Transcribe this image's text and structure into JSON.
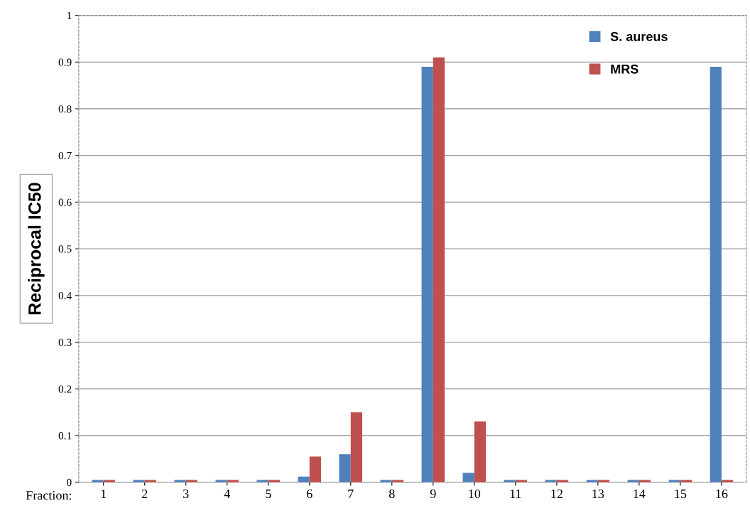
{
  "chart_data": {
    "type": "bar",
    "ylabel": "Reciprocal IC50",
    "xlabel": "Fraction:",
    "categories": [
      "1",
      "2",
      "3",
      "4",
      "5",
      "6",
      "7",
      "8",
      "9",
      "10",
      "11",
      "12",
      "13",
      "14",
      "15",
      "16"
    ],
    "series": [
      {
        "name": "S. aureus",
        "color": "#4f81bd",
        "values": [
          0.005,
          0.005,
          0.005,
          0.005,
          0.005,
          0.012,
          0.06,
          0.005,
          0.89,
          0.02,
          0.005,
          0.005,
          0.005,
          0.005,
          0.005,
          0.89
        ]
      },
      {
        "name": "MRS",
        "color": "#c0504d",
        "values": [
          0.005,
          0.005,
          0.005,
          0.005,
          0.005,
          0.055,
          0.15,
          0.005,
          0.91,
          0.13,
          0.005,
          0.005,
          0.005,
          0.005,
          0.005,
          0.005
        ]
      }
    ],
    "ylim": [
      0,
      1
    ],
    "yticks": [
      0,
      0.1,
      0.2,
      0.3,
      0.4,
      0.5,
      0.6,
      0.7,
      0.8,
      0.9,
      1
    ],
    "grid": "y",
    "legend": "top right"
  }
}
